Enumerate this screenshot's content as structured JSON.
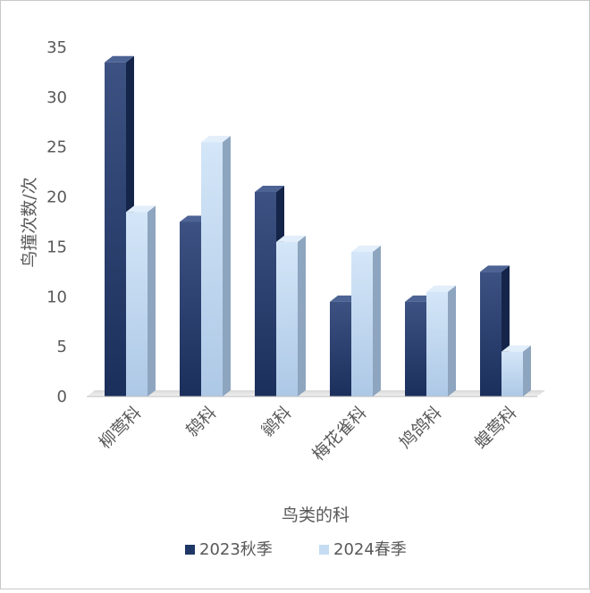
{
  "chart_data": {
    "type": "bar",
    "title": "",
    "xlabel": "鸟类的科",
    "ylabel": "鸟撞次数/次",
    "ylim": [
      0,
      35
    ],
    "yticks": [
      0,
      5,
      10,
      15,
      20,
      25,
      30,
      35
    ],
    "categories": [
      "柳莺科",
      "鸫科",
      "鹟科",
      "梅花雀科",
      "鸠鸽科",
      "蝗莺科"
    ],
    "series": [
      {
        "name": "2023秋季",
        "color": "#1f3766",
        "values": [
          33.5,
          17.5,
          20.5,
          9.5,
          9.5,
          12.5
        ]
      },
      {
        "name": "2024春季",
        "color": "#c5dcf3",
        "values": [
          18.5,
          25.5,
          15.5,
          14.5,
          10.5,
          4.5
        ]
      }
    ],
    "grid": false,
    "legend_position": "bottom"
  }
}
